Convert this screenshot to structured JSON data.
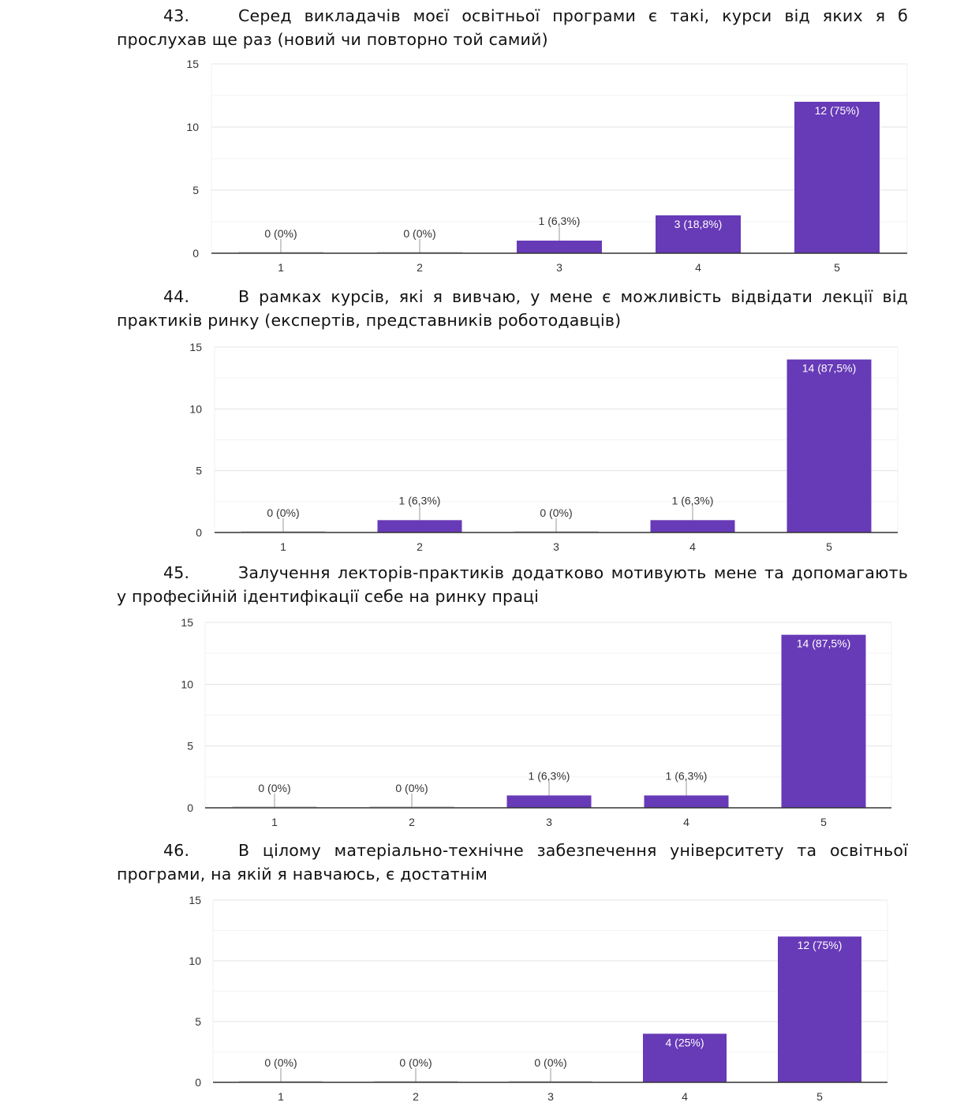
{
  "questions": [
    {
      "number": "43.",
      "text": "Серед викладачів моєї освітньої програми є такі, курси від яких я б прослухав ще раз (новий чи повторно той самий)"
    },
    {
      "number": "44.",
      "text": "В рамках курсів, які я вивчаю, у мене є можливість відвідати лекції від практиків ринку (експертів, представників роботодавців)"
    },
    {
      "number": "45.",
      "text": "Залучення лекторів-практиків додатково мотивують мене та допомагають у професійній ідентифікації себе на ринку праці"
    },
    {
      "number": "46.",
      "text": "В цілому матеріально-технічне забезпечення університету та освітньої програми, на якій я навчаюсь, є достатнім"
    }
  ],
  "chart_data": [
    {
      "type": "bar",
      "title": "Q43",
      "categories": [
        "1",
        "2",
        "3",
        "4",
        "5"
      ],
      "values": [
        0,
        0,
        1,
        3,
        12
      ],
      "labels": [
        "0 (0%)",
        "0 (0%)",
        "1 (6,3%)",
        "3 (18,8%)",
        "12 (75%)"
      ],
      "yticks": [
        "0",
        "5",
        "10",
        "15"
      ],
      "ylim": [
        0,
        15
      ],
      "color": "#673ab7",
      "grid": true
    },
    {
      "type": "bar",
      "title": "Q44",
      "categories": [
        "1",
        "2",
        "3",
        "4",
        "5"
      ],
      "values": [
        0,
        1,
        0,
        1,
        14
      ],
      "labels": [
        "0 (0%)",
        "1 (6,3%)",
        "0 (0%)",
        "1 (6,3%)",
        "14 (87,5%)"
      ],
      "yticks": [
        "0",
        "5",
        "10",
        "15"
      ],
      "ylim": [
        0,
        15
      ],
      "color": "#673ab7",
      "grid": true
    },
    {
      "type": "bar",
      "title": "Q45",
      "categories": [
        "1",
        "2",
        "3",
        "4",
        "5"
      ],
      "values": [
        0,
        0,
        1,
        1,
        14
      ],
      "labels": [
        "0 (0%)",
        "0 (0%)",
        "1 (6,3%)",
        "1 (6,3%)",
        "14 (87,5%)"
      ],
      "yticks": [
        "0",
        "5",
        "10",
        "15"
      ],
      "ylim": [
        0,
        15
      ],
      "color": "#673ab7",
      "grid": true
    },
    {
      "type": "bar",
      "title": "Q46",
      "categories": [
        "1",
        "2",
        "3",
        "4",
        "5"
      ],
      "values": [
        0,
        0,
        0,
        4,
        12
      ],
      "labels": [
        "0 (0%)",
        "0 (0%)",
        "0 (0%)",
        "4 (25%)",
        "12 (75%)"
      ],
      "yticks": [
        "0",
        "5",
        "10",
        "15"
      ],
      "ylim": [
        0,
        15
      ],
      "color": "#673ab7",
      "grid": true
    }
  ]
}
